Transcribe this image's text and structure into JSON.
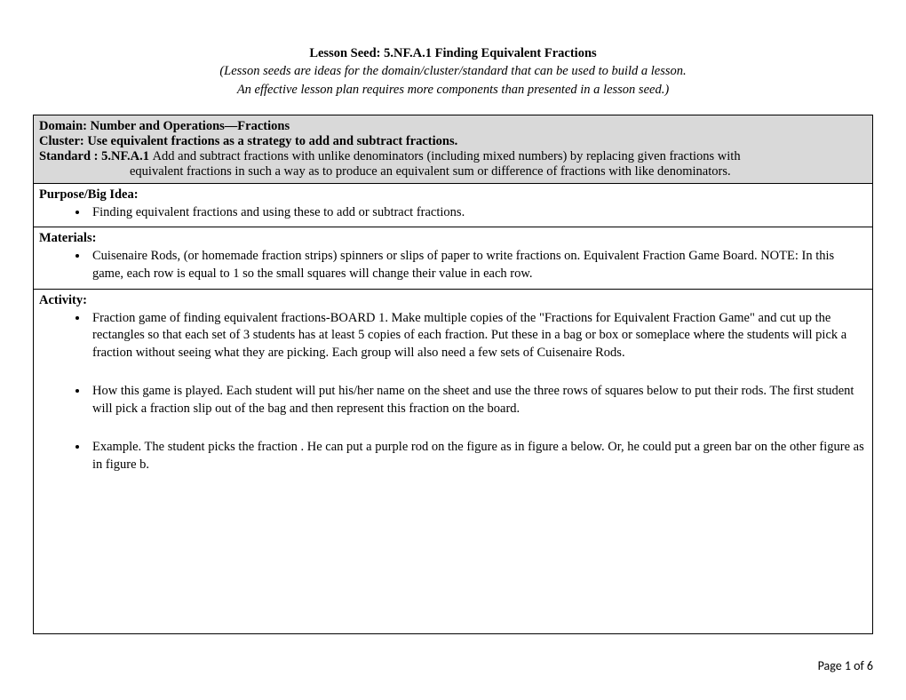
{
  "header": {
    "title": "Lesson Seed: 5.NF.A.1 Finding Equivalent Fractions",
    "subtitle1": "(Lesson seeds are ideas for the domain/cluster/standard that can be used to build a lesson.",
    "subtitle2": "An effective lesson plan requires more components than presented in a lesson seed.)"
  },
  "domain": {
    "domain_line": "Domain: Number and Operations—Fractions",
    "cluster_line": "Cluster: Use equivalent fractions as a strategy to add and subtract fractions.",
    "standard_label": "Standard :  5.NF.A.1 ",
    "standard_text1": "Add and subtract fractions with unlike denominators (including mixed numbers) by replacing given fractions with",
    "standard_text2": "equivalent fractions in such a way as to produce an equivalent sum or difference of fractions with like denominators."
  },
  "purpose": {
    "heading": "Purpose/Big Idea:",
    "bullet1": "Finding equivalent fractions and using these to add or subtract fractions."
  },
  "materials": {
    "heading": "Materials:",
    "bullet1": "Cuisenaire Rods, (or homemade fraction strips)  spinners or slips of paper to write fractions on. Equivalent Fraction Game Board.  NOTE:  In this game, each row is equal to 1 so the small squares will change their value in each row."
  },
  "activity": {
    "heading": "Activity:",
    "bullet1": "Fraction game of finding equivalent fractions-BOARD 1.  Make multiple copies of the \"Fractions for Equivalent Fraction Game\" and cut up the rectangles so that each set of 3 students has at least 5 copies of each fraction.  Put these in a bag or box or someplace where the students will pick a fraction without seeing what they are picking.  Each group will also need a few sets of Cuisenaire Rods.",
    "bullet2": "How this game is played.  Each student will put his/her name on the sheet and use the three rows of squares below to put their rods.  The first student will pick a fraction slip out of the bag and then represent this fraction on the board.",
    "bullet3": "Example.  The student picks the fraction  .  He can put a purple rod on the figure as in figure a below.  Or, he could put a green bar on the other figure as in figure b."
  },
  "footer": {
    "page": "Page 1 of 6"
  }
}
